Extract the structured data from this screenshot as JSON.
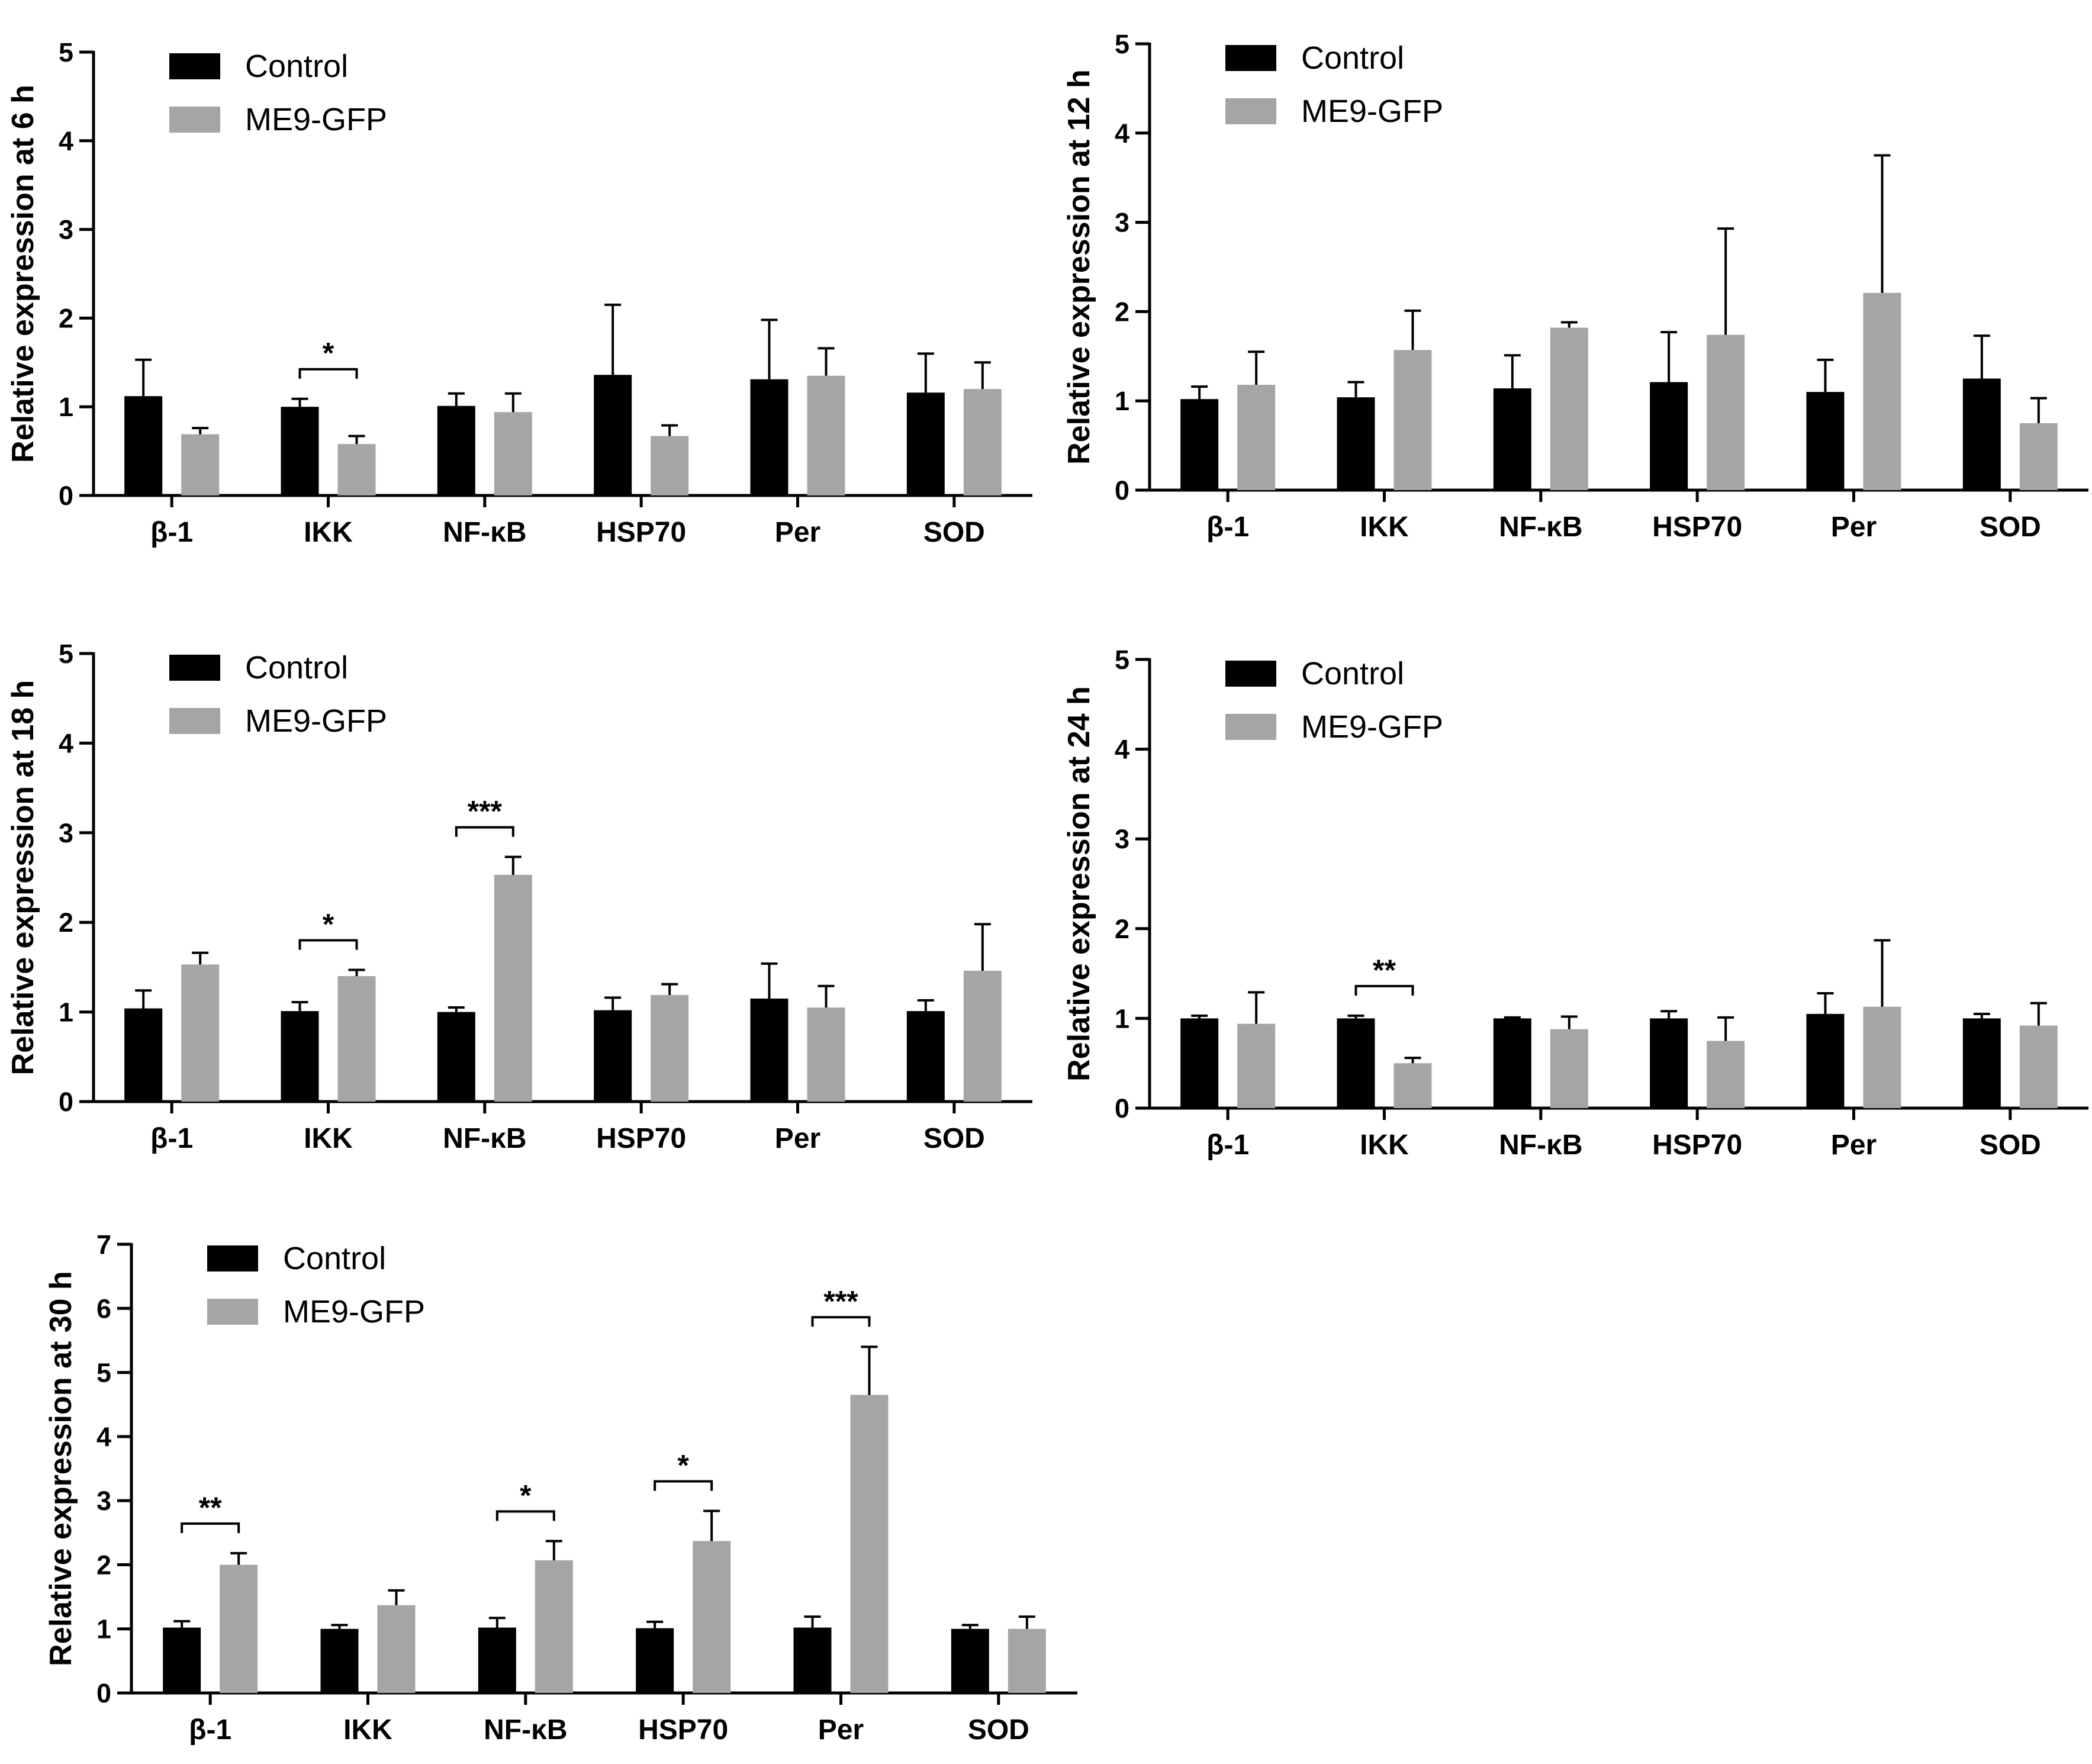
{
  "colors": {
    "control": "#000000",
    "treatment": "#a5a5a8",
    "axis": "#000000",
    "background": "#ffffff"
  },
  "chart_data": [
    {
      "type": "bar",
      "ylabel": "Relative expression at 6 h",
      "xlabel": "",
      "ylim": [
        0,
        5
      ],
      "yticks": [
        0,
        1,
        2,
        3,
        4,
        5
      ],
      "legend": {
        "position": "top-left",
        "entries": [
          "Control",
          "ME9-GFP"
        ]
      },
      "categories": [
        "β-1",
        "IKK",
        "NF-κB",
        "HSP70",
        "Per",
        "SOD"
      ],
      "series": [
        {
          "name": "Control",
          "values": [
            1.12,
            1.0,
            1.01,
            1.36,
            1.31,
            1.16
          ],
          "errors": [
            0.41,
            0.09,
            0.14,
            0.79,
            0.67,
            0.44
          ]
        },
        {
          "name": "ME9-GFP",
          "values": [
            0.69,
            0.58,
            0.94,
            0.67,
            1.35,
            1.2
          ],
          "errors": [
            0.07,
            0.09,
            0.21,
            0.12,
            0.31,
            0.3
          ]
        }
      ],
      "significance": [
        {
          "category": "IKK",
          "label": "*"
        }
      ]
    },
    {
      "type": "bar",
      "ylabel": "Relative expression at 12 h",
      "xlabel": "",
      "ylim": [
        0,
        5
      ],
      "yticks": [
        0,
        1,
        2,
        3,
        4,
        5
      ],
      "legend": {
        "position": "top-left",
        "entries": [
          "Control",
          "ME9-GFP"
        ]
      },
      "categories": [
        "β-1",
        "IKK",
        "NF-κB",
        "HSP70",
        "Per",
        "SOD"
      ],
      "series": [
        {
          "name": "Control",
          "values": [
            1.02,
            1.04,
            1.14,
            1.21,
            1.1,
            1.25
          ],
          "errors": [
            0.14,
            0.17,
            0.37,
            0.56,
            0.36,
            0.48
          ]
        },
        {
          "name": "ME9-GFP",
          "values": [
            1.18,
            1.57,
            1.82,
            1.74,
            2.21,
            0.75
          ],
          "errors": [
            0.37,
            0.44,
            0.06,
            1.19,
            1.54,
            0.28
          ]
        }
      ],
      "significance": []
    },
    {
      "type": "bar",
      "ylabel": "Relative expression at 18 h",
      "xlabel": "",
      "ylim": [
        0,
        5
      ],
      "yticks": [
        0,
        1,
        2,
        3,
        4,
        5
      ],
      "legend": {
        "position": "top-left",
        "entries": [
          "Control",
          "ME9-GFP"
        ]
      },
      "categories": [
        "β-1",
        "IKK",
        "NF-κB",
        "HSP70",
        "Per",
        "SOD"
      ],
      "series": [
        {
          "name": "Control",
          "values": [
            1.04,
            1.01,
            1.0,
            1.02,
            1.15,
            1.01
          ],
          "errors": [
            0.2,
            0.1,
            0.05,
            0.14,
            0.39,
            0.12
          ]
        },
        {
          "name": "ME9-GFP",
          "values": [
            1.53,
            1.4,
            2.53,
            1.19,
            1.05,
            1.46
          ],
          "errors": [
            0.13,
            0.07,
            0.2,
            0.12,
            0.24,
            0.52
          ]
        }
      ],
      "significance": [
        {
          "category": "IKK",
          "label": "*"
        },
        {
          "category": "NF-κB",
          "label": "***"
        }
      ]
    },
    {
      "type": "bar",
      "ylabel": "Relative expression at 24 h",
      "xlabel": "",
      "ylim": [
        0,
        5
      ],
      "yticks": [
        0,
        1,
        2,
        3,
        4,
        5
      ],
      "legend": {
        "position": "top-left",
        "entries": [
          "Control",
          "ME9-GFP"
        ]
      },
      "categories": [
        "β-1",
        "IKK",
        "NF-κB",
        "HSP70",
        "Per",
        "SOD"
      ],
      "series": [
        {
          "name": "Control",
          "values": [
            1.0,
            1.0,
            1.0,
            1.0,
            1.05,
            1.0
          ],
          "errors": [
            0.03,
            0.03,
            0.01,
            0.08,
            0.23,
            0.05
          ]
        },
        {
          "name": "ME9-GFP",
          "values": [
            0.94,
            0.5,
            0.88,
            0.75,
            1.13,
            0.92
          ],
          "errors": [
            0.35,
            0.06,
            0.14,
            0.26,
            0.74,
            0.25
          ]
        }
      ],
      "significance": [
        {
          "category": "IKK",
          "label": "**"
        }
      ]
    },
    {
      "type": "bar",
      "ylabel": "Relative expression at 30 h",
      "xlabel": "",
      "ylim": [
        0,
        7
      ],
      "yticks": [
        0,
        1,
        2,
        3,
        4,
        5,
        6,
        7
      ],
      "legend": {
        "position": "top-left",
        "entries": [
          "Control",
          "ME9-GFP"
        ]
      },
      "categories": [
        "β-1",
        "IKK",
        "NF-κB",
        "HSP70",
        "Per",
        "SOD"
      ],
      "series": [
        {
          "name": "Control",
          "values": [
            1.02,
            1.0,
            1.02,
            1.01,
            1.02,
            1.0
          ],
          "errors": [
            0.1,
            0.06,
            0.15,
            0.1,
            0.17,
            0.06
          ]
        },
        {
          "name": "ME9-GFP",
          "values": [
            2.0,
            1.37,
            2.07,
            2.37,
            4.65,
            1.0
          ],
          "errors": [
            0.18,
            0.23,
            0.3,
            0.47,
            0.75,
            0.19
          ]
        }
      ],
      "significance": [
        {
          "category": "β-1",
          "label": "**"
        },
        {
          "category": "NF-κB",
          "label": "*"
        },
        {
          "category": "HSP70",
          "label": "*"
        },
        {
          "category": "Per",
          "label": "***"
        }
      ]
    }
  ]
}
